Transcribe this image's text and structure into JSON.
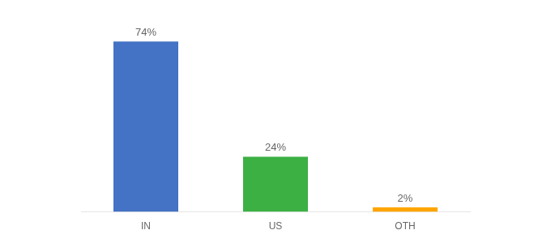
{
  "chart_data": {
    "type": "bar",
    "categories": [
      "IN",
      "US",
      "OTH"
    ],
    "values": [
      74,
      24,
      2
    ],
    "value_labels": [
      "74%",
      "24%",
      "2%"
    ],
    "colors": [
      "#4472C4",
      "#3CB043",
      "#FFA500"
    ],
    "ylim": [
      0,
      85
    ],
    "grid": false,
    "data_labels": true,
    "tick_labels": "x"
  }
}
